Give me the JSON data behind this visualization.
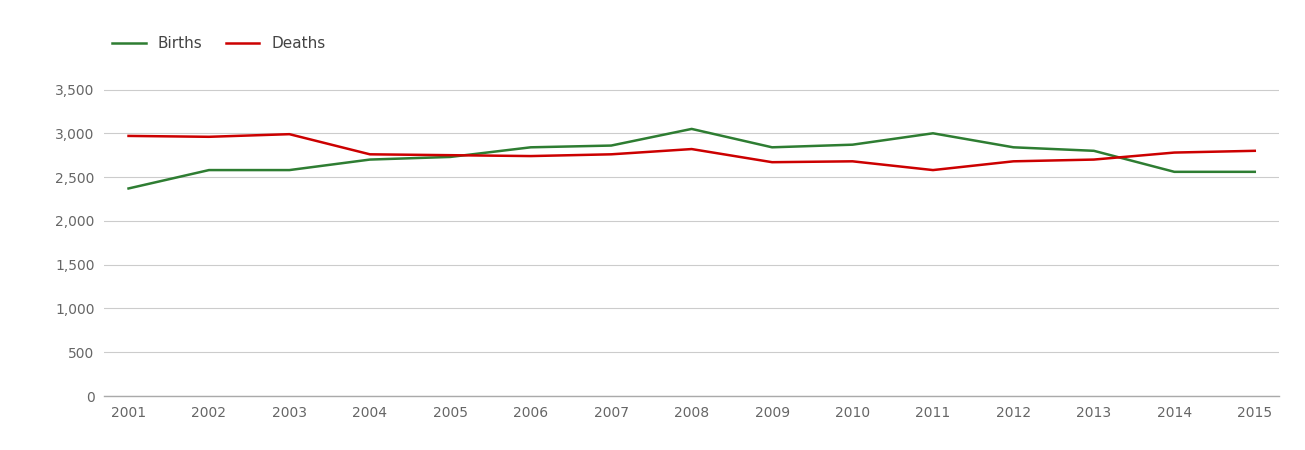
{
  "years": [
    2001,
    2002,
    2003,
    2004,
    2005,
    2006,
    2007,
    2008,
    2009,
    2010,
    2011,
    2012,
    2013,
    2014,
    2015
  ],
  "births": [
    2370,
    2580,
    2580,
    2700,
    2730,
    2840,
    2860,
    3050,
    2840,
    2870,
    3000,
    2840,
    2800,
    2560,
    2560
  ],
  "deaths": [
    2970,
    2960,
    2990,
    2760,
    2750,
    2740,
    2760,
    2820,
    2670,
    2680,
    2580,
    2680,
    2700,
    2780,
    2800
  ],
  "births_color": "#2e7d32",
  "deaths_color": "#cc0000",
  "background_color": "#ffffff",
  "grid_color": "#cccccc",
  "ylim": [
    0,
    3700
  ],
  "yticks": [
    0,
    500,
    1000,
    1500,
    2000,
    2500,
    3000,
    3500
  ],
  "legend_labels": [
    "Births",
    "Deaths"
  ],
  "legend_text_color": "#444444",
  "tick_color": "#666666",
  "line_width": 1.8,
  "figsize": [
    13.05,
    4.5
  ],
  "dpi": 100
}
